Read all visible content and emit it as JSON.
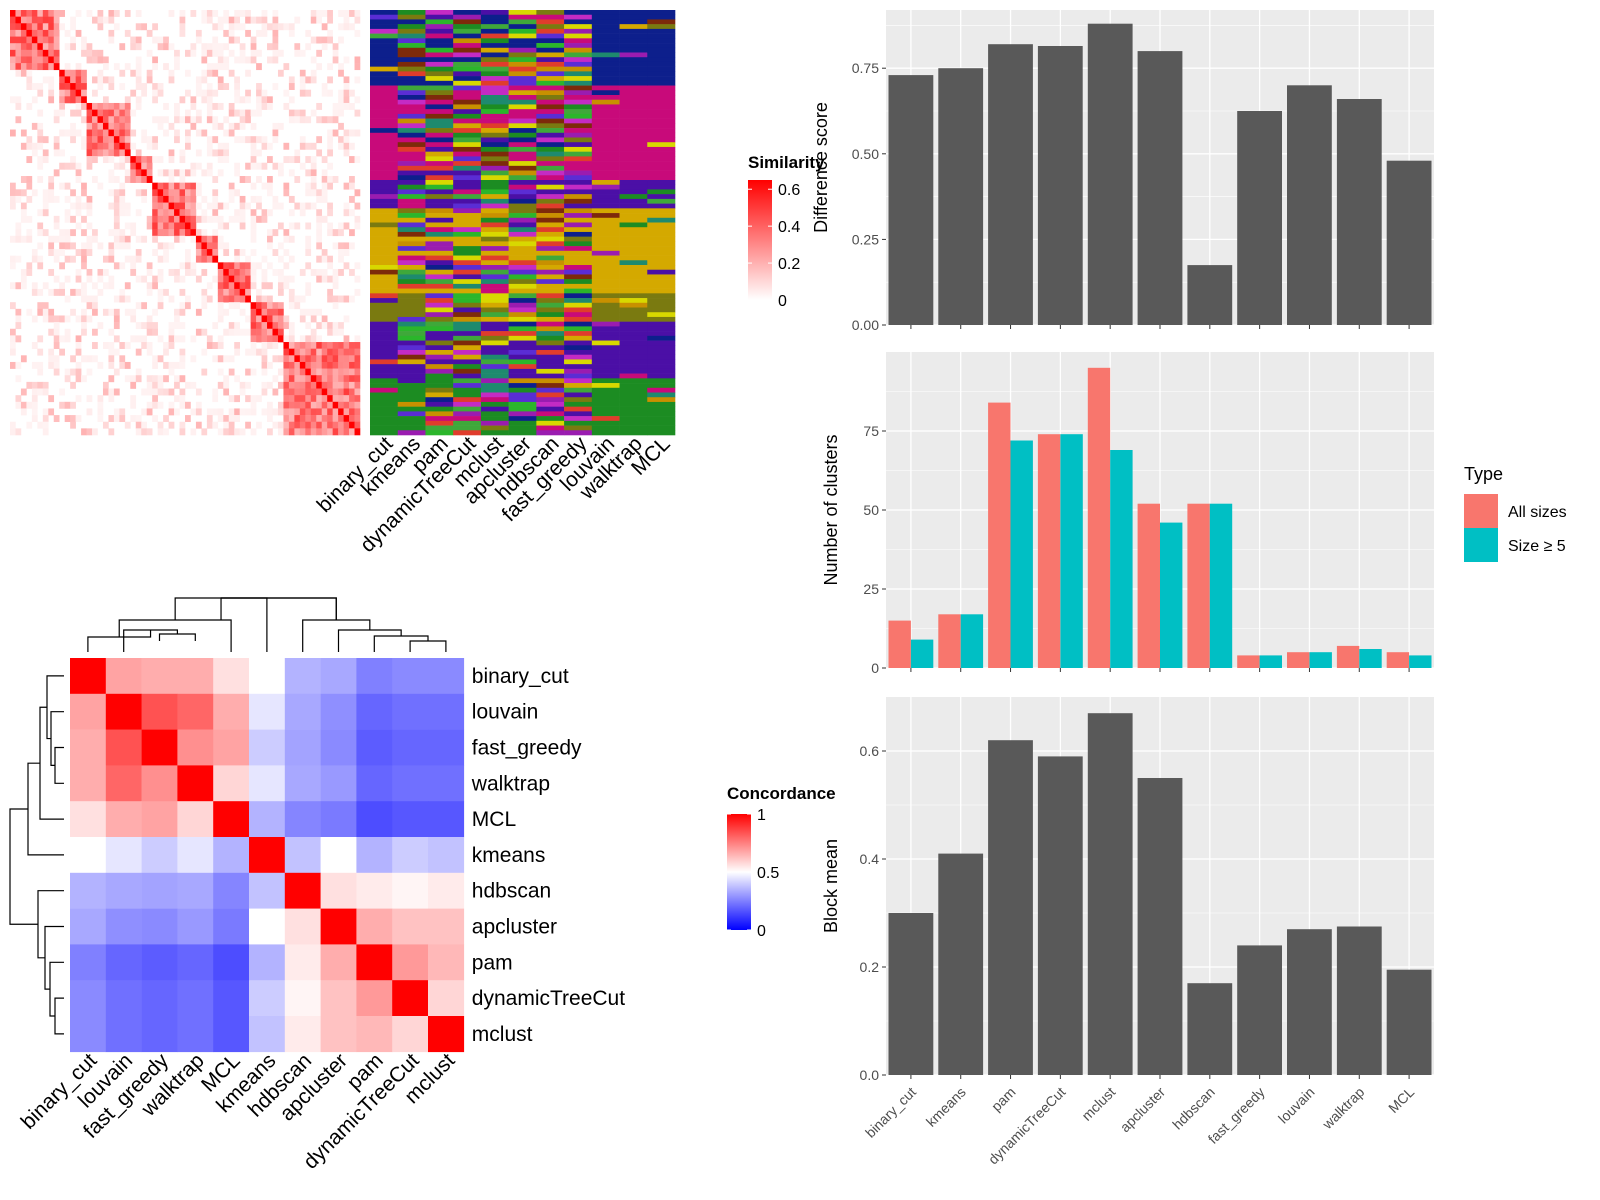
{
  "chart_data": [
    {
      "type": "heatmap",
      "name": "similarity-matrix",
      "legend_title": "Similarity",
      "legend_ticks": [
        "0",
        "0.2",
        "0.4",
        "0.6"
      ],
      "legend_range": [
        0,
        0.65
      ],
      "colors": {
        "low": "#ffffff",
        "high": "#ff0000"
      },
      "column_labels": [
        "binary_cut",
        "kmeans",
        "pam",
        "dynamicTreeCut",
        "mclust",
        "apcluster",
        "hdbscan",
        "fast_greedy",
        "louvain",
        "walktrap",
        "MCL"
      ]
    },
    {
      "type": "heatmap",
      "name": "concordance",
      "legend_title": "Concordance",
      "legend_ticks": [
        "1",
        "0.5",
        "0"
      ],
      "legend_range": [
        0,
        1
      ],
      "colors": {
        "low": "#0000ff",
        "mid": "#ffffff",
        "high": "#ff0000"
      },
      "row_labels": [
        "binary_cut",
        "louvain",
        "fast_greedy",
        "walktrap",
        "MCL",
        "kmeans",
        "hdbscan",
        "apcluster",
        "pam",
        "dynamicTreeCut",
        "mclust"
      ],
      "col_labels": [
        "binary_cut",
        "louvain",
        "fast_greedy",
        "walktrap",
        "MCL",
        "kmeans",
        "hdbscan",
        "apcluster",
        "pam",
        "dynamicTreeCut",
        "mclust"
      ],
      "matrix": [
        [
          1.0,
          0.68,
          0.66,
          0.66,
          0.56,
          0.5,
          0.35,
          0.33,
          0.25,
          0.27,
          0.27
        ],
        [
          0.68,
          1.0,
          0.84,
          0.8,
          0.66,
          0.45,
          0.33,
          0.28,
          0.2,
          0.22,
          0.22
        ],
        [
          0.66,
          0.84,
          1.0,
          0.72,
          0.68,
          0.4,
          0.32,
          0.27,
          0.18,
          0.2,
          0.2
        ],
        [
          0.66,
          0.8,
          0.72,
          1.0,
          0.58,
          0.45,
          0.33,
          0.3,
          0.2,
          0.22,
          0.22
        ],
        [
          0.56,
          0.66,
          0.68,
          0.58,
          1.0,
          0.35,
          0.26,
          0.24,
          0.15,
          0.17,
          0.17
        ],
        [
          0.5,
          0.45,
          0.4,
          0.45,
          0.35,
          1.0,
          0.38,
          0.5,
          0.35,
          0.4,
          0.38
        ],
        [
          0.35,
          0.33,
          0.32,
          0.33,
          0.26,
          0.38,
          1.0,
          0.56,
          0.54,
          0.52,
          0.54
        ],
        [
          0.33,
          0.28,
          0.27,
          0.3,
          0.24,
          0.5,
          0.56,
          1.0,
          0.66,
          0.62,
          0.62
        ],
        [
          0.25,
          0.2,
          0.18,
          0.2,
          0.15,
          0.35,
          0.54,
          0.66,
          1.0,
          0.7,
          0.64
        ],
        [
          0.27,
          0.22,
          0.2,
          0.22,
          0.17,
          0.4,
          0.52,
          0.62,
          0.7,
          1.0,
          0.58
        ],
        [
          0.27,
          0.22,
          0.2,
          0.22,
          0.17,
          0.38,
          0.54,
          0.62,
          0.64,
          0.58,
          1.0
        ]
      ]
    },
    {
      "type": "bar",
      "name": "difference-score",
      "categories": [
        "binary_cut",
        "kmeans",
        "pam",
        "dynamicTreeCut",
        "mclust",
        "apcluster",
        "hdbscan",
        "fast_greedy",
        "louvain",
        "walktrap",
        "MCL"
      ],
      "values": [
        0.73,
        0.75,
        0.82,
        0.815,
        0.88,
        0.8,
        0.175,
        0.625,
        0.7,
        0.66,
        0.48
      ],
      "ylabel": "Difference score",
      "ylim": [
        0,
        0.92
      ],
      "yticks": [
        0,
        0.25,
        0.5,
        0.75
      ],
      "ytick_labels": [
        "0.00",
        "0.25",
        "0.50",
        "0.75"
      ]
    },
    {
      "type": "bar",
      "name": "number-of-clusters",
      "categories": [
        "binary_cut",
        "kmeans",
        "pam",
        "dynamicTreeCut",
        "mclust",
        "apcluster",
        "hdbscan",
        "fast_greedy",
        "louvain",
        "walktrap",
        "MCL"
      ],
      "series": [
        {
          "name": "All sizes",
          "values": [
            15,
            17,
            84,
            74,
            95,
            52,
            52,
            4,
            5,
            7,
            5
          ]
        },
        {
          "name": "Size ≥ 5",
          "values": [
            9,
            17,
            72,
            74,
            69,
            46,
            52,
            4,
            5,
            6,
            4
          ]
        }
      ],
      "ylabel": "Number of clusters",
      "ylim": [
        0,
        100
      ],
      "yticks": [
        0,
        25,
        50,
        75
      ],
      "ytick_labels": [
        "0",
        "25",
        "50",
        "75"
      ],
      "legend": {
        "title": "Type",
        "position": "right"
      }
    },
    {
      "type": "bar",
      "name": "block-mean",
      "categories": [
        "binary_cut",
        "kmeans",
        "pam",
        "dynamicTreeCut",
        "mclust",
        "apcluster",
        "hdbscan",
        "fast_greedy",
        "louvain",
        "walktrap",
        "MCL"
      ],
      "values": [
        0.3,
        0.41,
        0.62,
        0.59,
        0.67,
        0.55,
        0.17,
        0.24,
        0.27,
        0.275,
        0.195
      ],
      "ylabel": "Block mean",
      "ylim": [
        0,
        0.7
      ],
      "yticks": [
        0,
        0.2,
        0.4,
        0.6
      ],
      "ytick_labels": [
        "0.0",
        "0.2",
        "0.4",
        "0.6"
      ]
    }
  ],
  "colors": {
    "bar_fill": "#595959",
    "panel_bg": "#ebebeb",
    "grid": "#ffffff",
    "series_1": "#f8766d",
    "series_2": "#00bfc4"
  }
}
